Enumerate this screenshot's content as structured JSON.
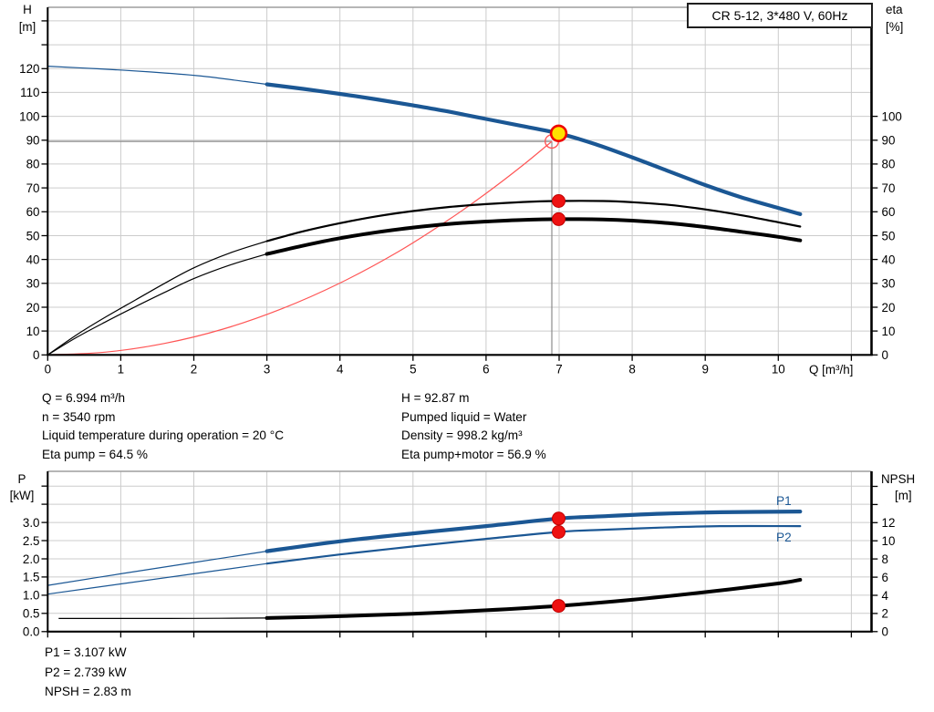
{
  "header": {
    "title": "CR 5-12, 3*480 V, 60Hz"
  },
  "labels": {
    "h": "H",
    "h_unit": "[m]",
    "eta": "eta",
    "eta_unit": "[%]",
    "q_axis": "Q [m³/h]",
    "p": "P",
    "p_unit": "[kW]",
    "npsh": "NPSH",
    "npsh_unit": "[m]",
    "p1": "P1",
    "p2": "P2"
  },
  "colors": {
    "blue": "#1b5794",
    "black": "#000000",
    "red_curve": "#ff5555",
    "marker_red": "#ee1111",
    "marker_red_stroke": "#c00000",
    "yellow": "#ffe000",
    "yellow_ring": "#ee0000",
    "grid": "#cccccc",
    "plot_border": "#9e9e9e",
    "crosshair": "#8c8c8c",
    "axis": "#000000"
  },
  "annotations": {
    "top_left": [
      "Q = 6.994 m³/h",
      "n = 3540 rpm",
      "Liquid temperature during operation = 20 °C",
      "Eta pump = 64.5 %"
    ],
    "top_right": [
      "H = 92.87 m",
      "Pumped liquid = Water",
      "Density = 998.2 kg/m³",
      "Eta pump+motor = 56.9 %"
    ],
    "bottom": [
      "P1 = 3.107 kW",
      "P2 = 2.739 kW",
      "NPSH = 2.83 m"
    ]
  },
  "chart_data": [
    {
      "type": "line",
      "title": "CR 5-12, 3*480 V, 60Hz",
      "xlabel": "Q [m³/h]",
      "ylabel_left": "H [m]",
      "ylabel_right": "eta [%]",
      "xlim": [
        0,
        11.28
      ],
      "ylim_left": [
        0,
        145.7
      ],
      "ylim_right": [
        0,
        145.7
      ],
      "grid": true,
      "show_x_labels": true,
      "x_ticks": [
        [
          0,
          "0"
        ],
        [
          1,
          "1"
        ],
        [
          2,
          "2"
        ],
        [
          3,
          "3"
        ],
        [
          4,
          "4"
        ],
        [
          5,
          "5"
        ],
        [
          6,
          "6"
        ],
        [
          7,
          "7"
        ],
        [
          8,
          "8"
        ],
        [
          9,
          "9"
        ],
        [
          10,
          "10"
        ],
        [
          11,
          ""
        ]
      ],
      "left_ticks": [
        [
          0,
          "0"
        ],
        [
          10,
          "10"
        ],
        [
          20,
          "20"
        ],
        [
          30,
          "30"
        ],
        [
          40,
          "40"
        ],
        [
          50,
          "50"
        ],
        [
          60,
          "60"
        ],
        [
          70,
          "70"
        ],
        [
          80,
          "80"
        ],
        [
          90,
          "90"
        ],
        [
          100,
          "100"
        ],
        [
          110,
          "110"
        ],
        [
          120,
          "120"
        ],
        [
          130,
          ""
        ],
        [
          140,
          ""
        ]
      ],
      "right_ticks": [
        [
          0,
          "0"
        ],
        [
          10,
          "10"
        ],
        [
          20,
          "20"
        ],
        [
          30,
          "30"
        ],
        [
          40,
          "40"
        ],
        [
          50,
          "50"
        ],
        [
          60,
          "60"
        ],
        [
          70,
          "70"
        ],
        [
          80,
          "80"
        ],
        [
          90,
          "90"
        ],
        [
          100,
          "100"
        ]
      ],
      "crosshair": {
        "q": 6.9,
        "value": 89.5
      },
      "series": [
        {
          "name": "affinity-system-curve",
          "axis": "left",
          "color": "#ff5555",
          "width": 1.2,
          "thin": [
            [
              0,
              0
            ],
            [
              0.8,
              1.2
            ],
            [
              1.6,
              4.8
            ],
            [
              2.4,
              10.8
            ],
            [
              3.2,
              19.3
            ],
            [
              4,
              30.1
            ],
            [
              4.8,
              43.3
            ],
            [
              5.5,
              56.9
            ],
            [
              6,
              67.7
            ],
            [
              6.5,
              79.4
            ],
            [
              6.9,
              89.5
            ]
          ],
          "thick": []
        },
        {
          "name": "eta-pump",
          "axis": "right",
          "color": "#000000",
          "width": 2.2,
          "thin": [
            [
              0,
              0
            ],
            [
              0.4,
              8.5
            ],
            [
              0.8,
              16
            ],
            [
              1.2,
              23
            ],
            [
              1.6,
              30
            ],
            [
              2,
              36.5
            ],
            [
              2.5,
              42.8
            ],
            [
              3,
              47.7
            ]
          ],
          "thick": [
            [
              3,
              47.7
            ],
            [
              3.5,
              51.8
            ],
            [
              4,
              55.2
            ],
            [
              4.5,
              58.1
            ],
            [
              5,
              60.3
            ],
            [
              5.5,
              62
            ],
            [
              6,
              63.2
            ],
            [
              6.5,
              64.1
            ],
            [
              6.994,
              64.5
            ],
            [
              7.6,
              64.5
            ],
            [
              8,
              64
            ],
            [
              8.5,
              62.9
            ],
            [
              9,
              61
            ],
            [
              9.5,
              58.5
            ],
            [
              10,
              55.6
            ],
            [
              10.3,
              53.8
            ]
          ]
        },
        {
          "name": "eta-pump-motor",
          "axis": "right",
          "color": "#000000",
          "width": 4,
          "thin": [
            [
              0,
              0
            ],
            [
              0.4,
              7.4
            ],
            [
              0.8,
              14
            ],
            [
              1.2,
              20.2
            ],
            [
              1.6,
              26.2
            ],
            [
              2,
              32
            ],
            [
              2.5,
              37.7
            ],
            [
              3,
              42.3
            ]
          ],
          "thick": [
            [
              3,
              42.3
            ],
            [
              3.5,
              45.8
            ],
            [
              4,
              48.9
            ],
            [
              4.5,
              51.4
            ],
            [
              5,
              53.4
            ],
            [
              5.5,
              54.9
            ],
            [
              6,
              55.9
            ],
            [
              6.5,
              56.6
            ],
            [
              6.994,
              56.9
            ],
            [
              7.6,
              56.8
            ],
            [
              8,
              56.3
            ],
            [
              8.5,
              55.2
            ],
            [
              9,
              53.6
            ],
            [
              9.5,
              51.6
            ],
            [
              10,
              49.5
            ],
            [
              10.3,
              48
            ]
          ]
        },
        {
          "name": "head",
          "axis": "left",
          "color": "#1b5794",
          "width": 4.2,
          "thin": [
            [
              0,
              121
            ],
            [
              0.7,
              119.9
            ],
            [
              1.4,
              118.6
            ],
            [
              2.1,
              116.9
            ],
            [
              2.7,
              114.6
            ],
            [
              3,
              113.4
            ]
          ],
          "thick": [
            [
              3,
              113.4
            ],
            [
              3.5,
              111.5
            ],
            [
              4,
              109.4
            ],
            [
              4.5,
              107.1
            ],
            [
              5,
              104.6
            ],
            [
              5.5,
              101.9
            ],
            [
              6,
              98.9
            ],
            [
              6.5,
              95.9
            ],
            [
              6.994,
              92.87
            ],
            [
              7.5,
              88.3
            ],
            [
              8,
              82.8
            ],
            [
              8.5,
              77
            ],
            [
              9,
              71.2
            ],
            [
              9.5,
              66
            ],
            [
              10,
              61.6
            ],
            [
              10.3,
              59
            ]
          ]
        }
      ],
      "markers": [
        {
          "name": "requested-duty-marker",
          "style": "open-red",
          "axis": "left",
          "q": 6.9,
          "value": 89.5
        },
        {
          "name": "operating-point-marker",
          "style": "yellow",
          "axis": "left",
          "q": 6.994,
          "value": 92.87,
          "interactable": true
        },
        {
          "name": "eta-pump-marker",
          "style": "red",
          "axis": "right",
          "q": 6.994,
          "value": 64.5
        },
        {
          "name": "eta-pump-motor-marker",
          "style": "red",
          "axis": "right",
          "q": 6.994,
          "value": 56.9
        }
      ]
    },
    {
      "type": "line",
      "title": "",
      "xlabel": "",
      "ylabel_left": "P [kW]",
      "ylabel_right": "NPSH [m]",
      "xlim": [
        0,
        11.28
      ],
      "ylim_left": [
        0,
        4.4
      ],
      "ylim_right": [
        0,
        17.6
      ],
      "grid": true,
      "show_x_labels": false,
      "x_ticks": [
        [
          0,
          ""
        ],
        [
          1,
          ""
        ],
        [
          2,
          ""
        ],
        [
          3,
          ""
        ],
        [
          4,
          ""
        ],
        [
          5,
          ""
        ],
        [
          6,
          ""
        ],
        [
          7,
          ""
        ],
        [
          8,
          ""
        ],
        [
          9,
          ""
        ],
        [
          10,
          ""
        ],
        [
          11,
          ""
        ]
      ],
      "left_ticks": [
        [
          0,
          "0.0"
        ],
        [
          0.5,
          "0.5"
        ],
        [
          1,
          "1.0"
        ],
        [
          1.5,
          "1.5"
        ],
        [
          2,
          "2.0"
        ],
        [
          2.5,
          "2.5"
        ],
        [
          3,
          "3.0"
        ],
        [
          3.5,
          ""
        ],
        [
          4,
          ""
        ]
      ],
      "right_ticks": [
        [
          0,
          "0"
        ],
        [
          2,
          "2"
        ],
        [
          4,
          "4"
        ],
        [
          6,
          "6"
        ],
        [
          8,
          "8"
        ],
        [
          10,
          "10"
        ],
        [
          12,
          "12"
        ],
        [
          14,
          ""
        ],
        [
          16,
          ""
        ]
      ],
      "series": [
        {
          "name": "npsh",
          "axis": "right",
          "color": "#000000",
          "width": 4,
          "thin": [
            [
              0.15,
              1.45
            ],
            [
              1,
              1.45
            ],
            [
              2,
              1.46
            ],
            [
              3,
              1.5
            ]
          ],
          "thick": [
            [
              3,
              1.5
            ],
            [
              4,
              1.7
            ],
            [
              5,
              1.97
            ],
            [
              6,
              2.35
            ],
            [
              6.994,
              2.83
            ],
            [
              8,
              3.5
            ],
            [
              9,
              4.35
            ],
            [
              10,
              5.3
            ],
            [
              10.3,
              5.7
            ]
          ]
        },
        {
          "name": "p2",
          "axis": "left",
          "color": "#1b5794",
          "width": 2.2,
          "thin": [
            [
              0,
              1.03
            ],
            [
              1,
              1.31
            ],
            [
              2,
              1.59
            ],
            [
              3,
              1.87
            ]
          ],
          "thick": [
            [
              3,
              1.87
            ],
            [
              4,
              2.12
            ],
            [
              5,
              2.34
            ],
            [
              6,
              2.55
            ],
            [
              6.994,
              2.739
            ],
            [
              7.6,
              2.8
            ],
            [
              8.4,
              2.86
            ],
            [
              9.2,
              2.9
            ],
            [
              10.3,
              2.9
            ]
          ]
        },
        {
          "name": "p1",
          "axis": "left",
          "color": "#1b5794",
          "width": 4.2,
          "thin": [
            [
              0,
              1.27
            ],
            [
              1,
              1.59
            ],
            [
              2,
              1.9
            ],
            [
              3,
              2.21
            ]
          ],
          "thick": [
            [
              3,
              2.21
            ],
            [
              4,
              2.48
            ],
            [
              5,
              2.7
            ],
            [
              6,
              2.9
            ],
            [
              6.994,
              3.107
            ],
            [
              7.6,
              3.17
            ],
            [
              8.4,
              3.24
            ],
            [
              9.2,
              3.28
            ],
            [
              10.3,
              3.3
            ]
          ]
        }
      ],
      "markers": [
        {
          "name": "p1-marker",
          "style": "red",
          "axis": "left",
          "q": 6.994,
          "value": 3.107
        },
        {
          "name": "p2-marker",
          "style": "red",
          "axis": "left",
          "q": 6.994,
          "value": 2.739
        },
        {
          "name": "npsh-marker",
          "style": "red",
          "axis": "right",
          "q": 6.994,
          "value": 2.83
        }
      ]
    }
  ]
}
